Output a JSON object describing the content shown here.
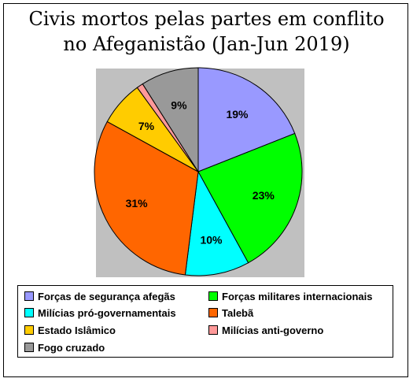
{
  "chart_data": {
    "type": "pie",
    "title_line1": "Civis mortos pelas partes em conflito",
    "title_line2": "no Afeganistão (Jan-Jun 2019)",
    "legend_position": "bottom",
    "slices": [
      {
        "name": "Forças de segurança afegãs",
        "value": 19,
        "label": "19%",
        "color": "#9999ff"
      },
      {
        "name": "Forças militares internacionais",
        "value": 23,
        "label": "23%",
        "color": "#00ff00"
      },
      {
        "name": "Milícias pró-governamentais",
        "value": 10,
        "label": "10%",
        "color": "#00ffff"
      },
      {
        "name": "Talebã",
        "value": 31,
        "label": "31%",
        "color": "#ff6600"
      },
      {
        "name": "Estado Islâmico",
        "value": 7,
        "label": "7%",
        "color": "#ffcc00"
      },
      {
        "name": "Milícias anti-governo",
        "value": 1,
        "label": "",
        "color": "#ff9999"
      },
      {
        "name": "Fogo cruzado",
        "value": 9,
        "label": "9%",
        "color": "#999999"
      }
    ]
  }
}
